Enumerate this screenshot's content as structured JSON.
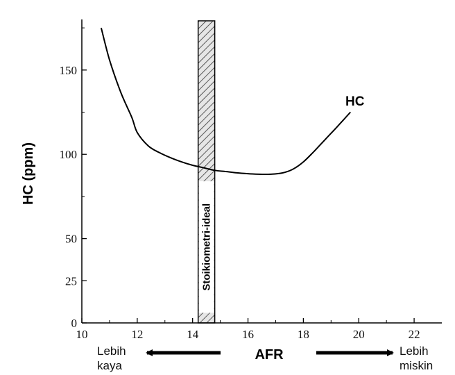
{
  "chart_data": {
    "type": "line",
    "xlabel": "AFR",
    "ylabel": "HC (ppm)",
    "xlim": [
      10,
      23
    ],
    "ylim": [
      0,
      180
    ],
    "x_ticks": [
      10,
      12,
      14,
      16,
      18,
      20,
      22
    ],
    "y_ticks": [
      0,
      25,
      50,
      100,
      150
    ],
    "series": [
      {
        "name": "HC",
        "x": [
          10.7,
          11.0,
          11.4,
          11.8,
          12.0,
          12.4,
          12.8,
          13.2,
          13.6,
          14.0,
          14.4,
          14.8,
          15.2,
          15.6,
          16.0,
          16.4,
          16.8,
          17.2,
          17.6,
          18.0,
          18.4,
          18.8,
          19.2,
          19.7
        ],
        "y": [
          175,
          156,
          137,
          122,
          113,
          105,
          101,
          98,
          95.5,
          93.5,
          92,
          90.5,
          89.8,
          89,
          88.5,
          88.2,
          88.2,
          88.8,
          91,
          95.5,
          102,
          109,
          116,
          125
        ]
      }
    ],
    "band": {
      "x": [
        14.2,
        14.8
      ],
      "label": "Stoikiometri-ideal",
      "hatched": true
    },
    "annotations": {
      "left_line1": "Lebih",
      "left_line2": "kaya",
      "right_line1": "Lebih",
      "right_line2": "miskin"
    },
    "grid": false,
    "colors": {
      "line": "#000000",
      "axis": "#000000",
      "band_fill": "#e6e6e6"
    }
  }
}
